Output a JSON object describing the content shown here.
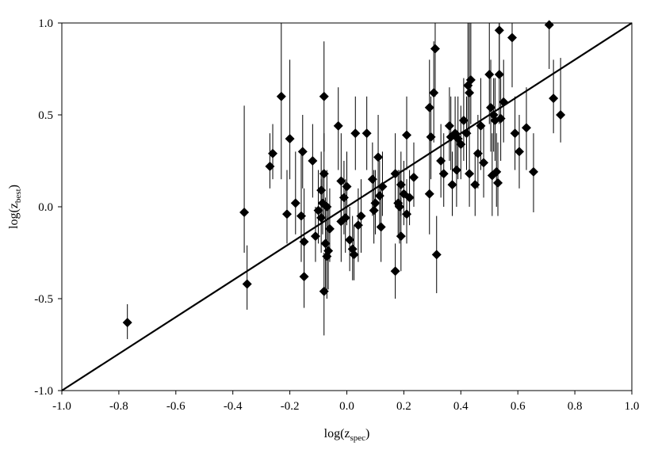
{
  "chart_data": {
    "type": "scatter",
    "title": "",
    "xlabel": "log(z",
    "xlabel_sub": "spec",
    "xlabel_close": ")",
    "ylabel": "log(z",
    "ylabel_sub": "best",
    "ylabel_close": ")",
    "xlim": [
      -1.0,
      1.0
    ],
    "ylim": [
      -1.0,
      1.0
    ],
    "x_ticks": [
      -1.0,
      -0.8,
      -0.6,
      -0.4,
      -0.2,
      0.0,
      0.2,
      0.4,
      0.6,
      0.8,
      1.0
    ],
    "x_tick_labels": [
      "-1.0",
      "-0.8",
      "-0.6",
      "-0.4",
      "-0.2",
      "0.0",
      "0.2",
      "0.4",
      "0.6",
      "0.8",
      "1.0"
    ],
    "y_ticks": [
      -1.0,
      -0.5,
      0.0,
      0.5,
      1.0
    ],
    "y_tick_labels": [
      "-1.0",
      "-0.5",
      "0.0",
      "0.5",
      "1.0"
    ],
    "grid": false,
    "legend": "none",
    "reference_line": {
      "x": [
        -1.0,
        1.0
      ],
      "y": [
        -1.0,
        1.0
      ]
    },
    "marker": "diamond",
    "marker_color": "#000000",
    "points": [
      {
        "x": -0.77,
        "y": -0.63,
        "lo": -0.72,
        "hi": -0.53
      },
      {
        "x": -0.36,
        "y": -0.03,
        "lo": -0.25,
        "hi": 0.55
      },
      {
        "x": -0.35,
        "y": -0.42,
        "lo": -0.56,
        "hi": -0.21
      },
      {
        "x": -0.27,
        "y": 0.22,
        "lo": 0.1,
        "hi": 0.4
      },
      {
        "x": -0.26,
        "y": 0.29,
        "lo": 0.15,
        "hi": 0.45
      },
      {
        "x": -0.23,
        "y": 0.6,
        "lo": 0.15,
        "hi": 1.0
      },
      {
        "x": -0.21,
        "y": -0.04,
        "lo": -0.2,
        "hi": 0.2
      },
      {
        "x": -0.2,
        "y": 0.37,
        "lo": 0.15,
        "hi": 0.8
      },
      {
        "x": -0.18,
        "y": 0.02,
        "lo": -0.15,
        "hi": 0.3
      },
      {
        "x": -0.16,
        "y": -0.05,
        "lo": -0.3,
        "hi": 0.3
      },
      {
        "x": -0.155,
        "y": 0.3,
        "lo": 0.1,
        "hi": 0.5
      },
      {
        "x": -0.15,
        "y": -0.19,
        "lo": -0.4,
        "hi": 0.1
      },
      {
        "x": -0.15,
        "y": -0.38,
        "lo": -0.55,
        "hi": -0.2
      },
      {
        "x": -0.12,
        "y": 0.25,
        "lo": 0.05,
        "hi": 0.45
      },
      {
        "x": -0.11,
        "y": -0.16,
        "lo": -0.3,
        "hi": 0.0
      },
      {
        "x": -0.1,
        "y": -0.02,
        "lo": -0.2,
        "hi": 0.2
      },
      {
        "x": -0.09,
        "y": 0.09,
        "lo": -0.1,
        "hi": 0.3
      },
      {
        "x": -0.09,
        "y": -0.06,
        "lo": -0.25,
        "hi": 0.15
      },
      {
        "x": -0.085,
        "y": 0.02,
        "lo": -0.15,
        "hi": 0.2
      },
      {
        "x": -0.08,
        "y": 0.18,
        "lo": -0.05,
        "hi": 0.4
      },
      {
        "x": -0.08,
        "y": -0.46,
        "lo": -0.7,
        "hi": -0.25
      },
      {
        "x": -0.08,
        "y": 0.6,
        "lo": 0.3,
        "hi": 0.9
      },
      {
        "x": -0.075,
        "y": -0.2,
        "lo": -0.45,
        "hi": 0.05
      },
      {
        "x": -0.07,
        "y": 0.0,
        "lo": -0.2,
        "hi": 0.2
      },
      {
        "x": -0.07,
        "y": -0.27,
        "lo": -0.5,
        "hi": -0.05
      },
      {
        "x": -0.065,
        "y": -0.24,
        "lo": -0.45,
        "hi": 0.0
      },
      {
        "x": -0.06,
        "y": -0.12,
        "lo": -0.3,
        "hi": 0.1
      },
      {
        "x": -0.03,
        "y": 0.44,
        "lo": 0.2,
        "hi": 0.65
      },
      {
        "x": -0.02,
        "y": 0.14,
        "lo": -0.1,
        "hi": 0.4
      },
      {
        "x": -0.02,
        "y": -0.08,
        "lo": -0.3,
        "hi": 0.15
      },
      {
        "x": -0.01,
        "y": 0.05,
        "lo": -0.15,
        "hi": 0.25
      },
      {
        "x": -0.005,
        "y": -0.06,
        "lo": -0.25,
        "hi": 0.15
      },
      {
        "x": 0.0,
        "y": 0.11,
        "lo": -0.1,
        "hi": 0.3
      },
      {
        "x": 0.01,
        "y": -0.18,
        "lo": -0.35,
        "hi": 0.0
      },
      {
        "x": 0.02,
        "y": -0.23,
        "lo": -0.4,
        "hi": -0.05
      },
      {
        "x": 0.025,
        "y": -0.26,
        "lo": -0.4,
        "hi": -0.1
      },
      {
        "x": 0.03,
        "y": 0.4,
        "lo": 0.2,
        "hi": 0.6
      },
      {
        "x": 0.04,
        "y": -0.1,
        "lo": -0.3,
        "hi": 0.1
      },
      {
        "x": 0.05,
        "y": -0.05,
        "lo": -0.25,
        "hi": 0.15
      },
      {
        "x": 0.07,
        "y": 0.4,
        "lo": 0.2,
        "hi": 0.6
      },
      {
        "x": 0.09,
        "y": 0.15,
        "lo": -0.05,
        "hi": 0.35
      },
      {
        "x": 0.095,
        "y": -0.02,
        "lo": -0.2,
        "hi": 0.2
      },
      {
        "x": 0.1,
        "y": 0.02,
        "lo": -0.15,
        "hi": 0.2
      },
      {
        "x": 0.11,
        "y": 0.27,
        "lo": 0.05,
        "hi": 0.5
      },
      {
        "x": 0.115,
        "y": 0.06,
        "lo": -0.1,
        "hi": 0.25
      },
      {
        "x": 0.12,
        "y": -0.11,
        "lo": -0.3,
        "hi": 0.1
      },
      {
        "x": 0.125,
        "y": 0.11,
        "lo": -0.05,
        "hi": 0.3
      },
      {
        "x": 0.17,
        "y": 0.18,
        "lo": 0.0,
        "hi": 0.4
      },
      {
        "x": 0.17,
        "y": -0.35,
        "lo": -0.5,
        "hi": -0.2
      },
      {
        "x": 0.18,
        "y": 0.02,
        "lo": -0.15,
        "hi": 0.2
      },
      {
        "x": 0.185,
        "y": 0.0,
        "lo": -0.2,
        "hi": 0.2
      },
      {
        "x": 0.19,
        "y": 0.12,
        "lo": -0.05,
        "hi": 0.3
      },
      {
        "x": 0.19,
        "y": -0.16,
        "lo": -0.35,
        "hi": 0.05
      },
      {
        "x": 0.2,
        "y": 0.07,
        "lo": -0.1,
        "hi": 0.25
      },
      {
        "x": 0.21,
        "y": 0.39,
        "lo": 0.2,
        "hi": 0.6
      },
      {
        "x": 0.21,
        "y": -0.04,
        "lo": -0.2,
        "hi": 0.15
      },
      {
        "x": 0.22,
        "y": 0.05,
        "lo": -0.1,
        "hi": 0.2
      },
      {
        "x": 0.235,
        "y": 0.16,
        "lo": 0.0,
        "hi": 0.35
      },
      {
        "x": 0.29,
        "y": 0.54,
        "lo": 0.3,
        "hi": 0.8
      },
      {
        "x": 0.29,
        "y": 0.07,
        "lo": -0.15,
        "hi": 0.3
      },
      {
        "x": 0.295,
        "y": 0.38,
        "lo": 0.15,
        "hi": 0.6
      },
      {
        "x": 0.305,
        "y": 0.62,
        "lo": 0.35,
        "hi": 0.9
      },
      {
        "x": 0.31,
        "y": 0.86,
        "lo": 0.6,
        "hi": 1.0
      },
      {
        "x": 0.315,
        "y": -0.26,
        "lo": -0.47,
        "hi": -0.05
      },
      {
        "x": 0.33,
        "y": 0.25,
        "lo": 0.05,
        "hi": 0.45
      },
      {
        "x": 0.34,
        "y": 0.18,
        "lo": 0.0,
        "hi": 0.4
      },
      {
        "x": 0.36,
        "y": 0.44,
        "lo": 0.25,
        "hi": 0.65
      },
      {
        "x": 0.365,
        "y": 0.38,
        "lo": 0.2,
        "hi": 0.6
      },
      {
        "x": 0.37,
        "y": 0.12,
        "lo": -0.05,
        "hi": 0.3
      },
      {
        "x": 0.38,
        "y": 0.4,
        "lo": 0.2,
        "hi": 0.6
      },
      {
        "x": 0.385,
        "y": 0.2,
        "lo": 0.0,
        "hi": 0.4
      },
      {
        "x": 0.39,
        "y": 0.37,
        "lo": 0.15,
        "hi": 0.6
      },
      {
        "x": 0.4,
        "y": 0.34,
        "lo": 0.15,
        "hi": 0.55
      },
      {
        "x": 0.41,
        "y": 0.47,
        "lo": 0.25,
        "hi": 0.7
      },
      {
        "x": 0.42,
        "y": 0.4,
        "lo": 0.2,
        "hi": 0.6
      },
      {
        "x": 0.425,
        "y": 0.66,
        "lo": 0.4,
        "hi": 1.0
      },
      {
        "x": 0.43,
        "y": 0.62,
        "lo": 0.4,
        "hi": 1.0
      },
      {
        "x": 0.435,
        "y": 0.69,
        "lo": 0.45,
        "hi": 1.0
      },
      {
        "x": 0.43,
        "y": 0.18,
        "lo": 0.0,
        "hi": 0.4
      },
      {
        "x": 0.45,
        "y": 0.12,
        "lo": -0.05,
        "hi": 0.3
      },
      {
        "x": 0.46,
        "y": 0.29,
        "lo": 0.1,
        "hi": 0.5
      },
      {
        "x": 0.47,
        "y": 0.44,
        "lo": 0.2,
        "hi": 0.7
      },
      {
        "x": 0.48,
        "y": 0.24,
        "lo": 0.05,
        "hi": 0.45
      },
      {
        "x": 0.5,
        "y": 0.72,
        "lo": 0.45,
        "hi": 1.0
      },
      {
        "x": 0.505,
        "y": 0.54,
        "lo": 0.3,
        "hi": 0.8
      },
      {
        "x": 0.51,
        "y": 0.17,
        "lo": -0.05,
        "hi": 0.4
      },
      {
        "x": 0.515,
        "y": 0.5,
        "lo": 0.3,
        "hi": 0.7
      },
      {
        "x": 0.52,
        "y": 0.47,
        "lo": 0.25,
        "hi": 0.7
      },
      {
        "x": 0.525,
        "y": 0.19,
        "lo": 0.0,
        "hi": 0.4
      },
      {
        "x": 0.53,
        "y": 0.13,
        "lo": -0.05,
        "hi": 0.35
      },
      {
        "x": 0.535,
        "y": 0.72,
        "lo": 0.45,
        "hi": 1.0
      },
      {
        "x": 0.535,
        "y": 0.96,
        "lo": 0.7,
        "hi": 1.0
      },
      {
        "x": 0.54,
        "y": 0.48,
        "lo": 0.25,
        "hi": 0.7
      },
      {
        "x": 0.55,
        "y": 0.57,
        "lo": 0.35,
        "hi": 0.8
      },
      {
        "x": 0.58,
        "y": 0.92,
        "lo": 0.65,
        "hi": 1.0
      },
      {
        "x": 0.59,
        "y": 0.4,
        "lo": 0.2,
        "hi": 0.6
      },
      {
        "x": 0.605,
        "y": 0.3,
        "lo": 0.1,
        "hi": 0.5
      },
      {
        "x": 0.63,
        "y": 0.43,
        "lo": 0.2,
        "hi": 0.65
      },
      {
        "x": 0.655,
        "y": 0.19,
        "lo": -0.03,
        "hi": 0.4
      },
      {
        "x": 0.71,
        "y": 0.99,
        "lo": 0.75,
        "hi": 1.0
      },
      {
        "x": 0.725,
        "y": 0.59,
        "lo": 0.4,
        "hi": 0.8
      },
      {
        "x": 0.75,
        "y": 0.5,
        "lo": 0.35,
        "hi": 0.81
      }
    ]
  }
}
